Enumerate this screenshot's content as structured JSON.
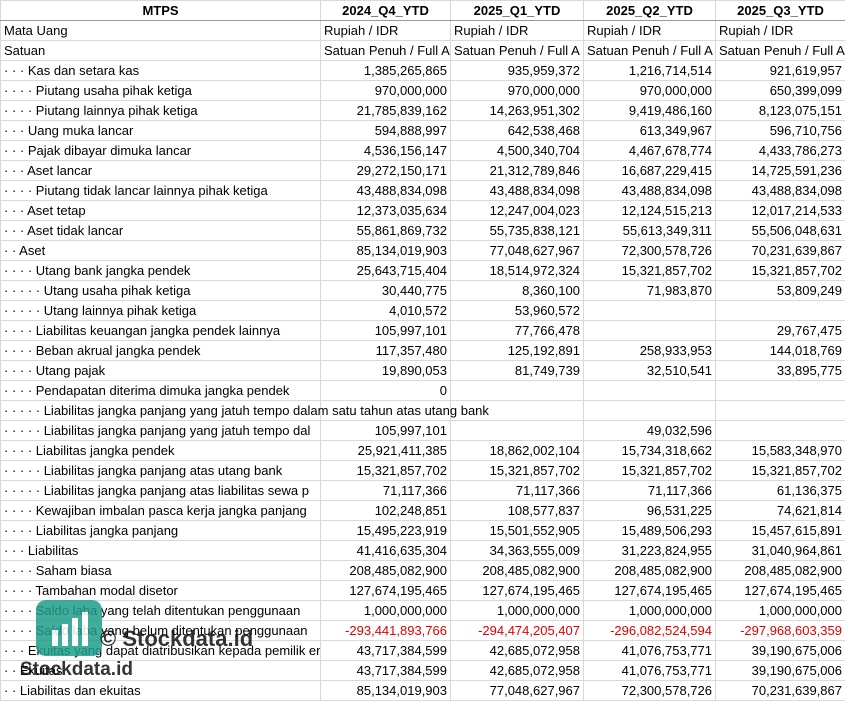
{
  "header": [
    "MTPS",
    "2024_Q4_YTD",
    "2025_Q1_YTD",
    "2025_Q2_YTD",
    "2025_Q3_YTD"
  ],
  "table": {
    "rows": [
      [
        "Mata Uang",
        "Rupiah / IDR",
        "Rupiah / IDR",
        "Rupiah / IDR",
        "Rupiah / IDR"
      ],
      [
        "Satuan",
        "Satuan Penuh / Full A",
        "Satuan Penuh / Full A",
        "Satuan Penuh / Full A",
        "Satuan Penuh / Full A"
      ],
      [
        "· · · Kas dan setara kas",
        "1,385,265,865",
        "935,959,372",
        "1,216,714,514",
        "921,619,957"
      ],
      [
        "· · · · Piutang usaha pihak ketiga",
        "970,000,000",
        "970,000,000",
        "970,000,000",
        "650,399,099"
      ],
      [
        "· · · · Piutang lainnya pihak ketiga",
        "21,785,839,162",
        "14,263,951,302",
        "9,419,486,160",
        "8,123,075,151"
      ],
      [
        "· · · Uang muka lancar",
        "594,888,997",
        "642,538,468",
        "613,349,967",
        "596,710,756"
      ],
      [
        "· · · Pajak dibayar dimuka lancar",
        "4,536,156,147",
        "4,500,340,704",
        "4,467,678,774",
        "4,433,786,273"
      ],
      [
        "· · · Aset lancar",
        "29,272,150,171",
        "21,312,789,846",
        "16,687,229,415",
        "14,725,591,236"
      ],
      [
        "· · · · Piutang tidak lancar lainnya pihak ketiga",
        "43,488,834,098",
        "43,488,834,098",
        "43,488,834,098",
        "43,488,834,098"
      ],
      [
        "· · · Aset tetap",
        "12,373,035,634",
        "12,247,004,023",
        "12,124,515,213",
        "12,017,214,533"
      ],
      [
        "· · · Aset tidak lancar",
        "55,861,869,732",
        "55,735,838,121",
        "55,613,349,311",
        "55,506,048,631"
      ],
      [
        "· · Aset",
        "85,134,019,903",
        "77,048,627,967",
        "72,300,578,726",
        "70,231,639,867"
      ],
      [
        "· · · · Utang bank jangka pendek",
        "25,643,715,404",
        "18,514,972,324",
        "15,321,857,702",
        "15,321,857,702"
      ],
      [
        "· · · · · Utang usaha pihak ketiga",
        "30,440,775",
        "8,360,100",
        "71,983,870",
        "53,809,249"
      ],
      [
        "· · · · · Utang lainnya pihak ketiga",
        "4,010,572",
        "53,960,572",
        null,
        null
      ],
      [
        "· · · · Liabilitas keuangan jangka pendek lainnya",
        "105,997,101",
        "77,766,478",
        null,
        "29,767,475"
      ],
      [
        "· · · · Beban akrual jangka pendek",
        "117,357,480",
        "125,192,891",
        "258,933,953",
        "144,018,769"
      ],
      [
        "· · · · Utang pajak",
        "19,890,053",
        "81,749,739",
        "32,510,541",
        "33,895,775"
      ],
      [
        "· · · · Pendapatan diterima dimuka jangka pendek",
        "0",
        null,
        null,
        null
      ],
      [
        "· · · · · Liabilitas jangka panjang yang jatuh tempo dalam satu tahun atas utang bank",
        null,
        null,
        null,
        null
      ],
      [
        "· · · · · Liabilitas jangka panjang yang jatuh tempo dal",
        "105,997,101",
        null,
        "49,032,596",
        null
      ],
      [
        "· · · · Liabilitas jangka pendek",
        "25,921,411,385",
        "18,862,002,104",
        "15,734,318,662",
        "15,583,348,970"
      ],
      [
        "· · · · · Liabilitas jangka panjang atas utang bank",
        "15,321,857,702",
        "15,321,857,702",
        "15,321,857,702",
        "15,321,857,702"
      ],
      [
        "· · · · · Liabilitas jangka panjang atas liabilitas sewa p",
        "71,117,366",
        "71,117,366",
        "71,117,366",
        "61,136,375"
      ],
      [
        "· · · · Kewajiban imbalan pasca kerja jangka panjang",
        "102,248,851",
        "108,577,837",
        "96,531,225",
        "74,621,814"
      ],
      [
        "· · · · Liabilitas jangka panjang",
        "15,495,223,919",
        "15,501,552,905",
        "15,489,506,293",
        "15,457,615,891"
      ],
      [
        "· · · Liabilitas",
        "41,416,635,304",
        "34,363,555,009",
        "31,223,824,955",
        "31,040,964,861"
      ],
      [
        "· · · · Saham biasa",
        "208,485,082,900",
        "208,485,082,900",
        "208,485,082,900",
        "208,485,082,900"
      ],
      [
        "· · · · Tambahan modal disetor",
        "127,674,195,465",
        "127,674,195,465",
        "127,674,195,465",
        "127,674,195,465"
      ],
      [
        "· · · · Saldo laba yang telah ditentukan penggunaan",
        "1,000,000,000",
        "1,000,000,000",
        "1,000,000,000",
        "1,000,000,000"
      ],
      [
        "· · · · Saldo laba yang belum ditentukan penggunaan",
        "-293,441,893,766",
        "-294,474,205,407",
        "-296,082,524,594",
        "-297,968,603,359"
      ],
      [
        "· · · Ekuitas yang dapat diatribusikan kepada pemilik entit",
        "43,717,384,599",
        "42,685,072,958",
        "41,076,753,771",
        "39,190,675,006"
      ],
      [
        "· · Ekuitas",
        "43,717,384,599",
        "42,685,072,958",
        "41,076,753,771",
        "39,190,675,006"
      ],
      [
        "· · Liabilitas dan ekuitas",
        "85,134,019,903",
        "77,048,627,967",
        "72,300,578,726",
        "70,231,639,867"
      ]
    ]
  },
  "watermark": {
    "text": "© Stockdata.id",
    "logo_text": "Stockdata.id"
  }
}
